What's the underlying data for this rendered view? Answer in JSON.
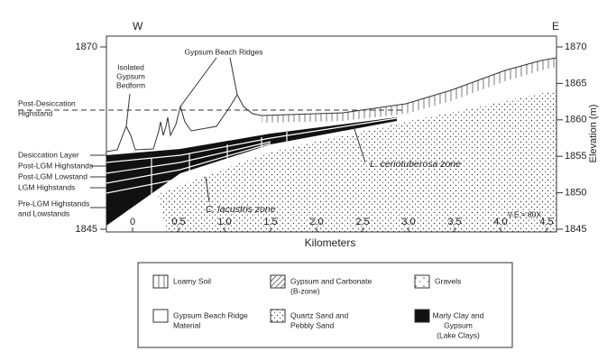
{
  "header": {
    "west": "W",
    "east": "E"
  },
  "axes": {
    "x_label": "Kilometers",
    "y_label": "Elevation (m)",
    "x_ticks": [
      0,
      0.5,
      {
        "value": 1,
        "label": "1.0"
      },
      1.5,
      {
        "value": 2,
        "label": "2.0"
      },
      2.5,
      {
        "value": 3,
        "label": "3.0"
      },
      3.5,
      {
        "value": 4,
        "label": "4.0"
      },
      4.5
    ],
    "left_y_ticks": [
      1870,
      1845
    ],
    "right_y_ticks": [
      1870,
      1865,
      1860,
      1855,
      1850,
      1845
    ]
  },
  "left_labels": [
    [
      "Post-Desiccation",
      "Highstand"
    ],
    [
      "Desiccation Layer"
    ],
    [
      "Post-LGM Highstands"
    ],
    [
      "Post-LGM Lowstand"
    ],
    [
      "LGM Highstands"
    ],
    [
      "Pre-LGM Highstands",
      "and Lowstands"
    ]
  ],
  "annotations": {
    "bedform": [
      "Isolated",
      "Gypsum",
      "Bedform"
    ],
    "ridges": "Gypsum Beach Ridges",
    "ceriotuberosa": "L. ceriotuberosa zone",
    "lacustris": "C. lacustris zone",
    "ve": "V.E.≈ 80X"
  },
  "legend": [
    [
      "Loamy Soil"
    ],
    [
      "Gypsum and Carbonate",
      "(B-zone)"
    ],
    [
      "Gravels"
    ],
    [
      "Gypsum Beach Ridge",
      "Material"
    ],
    [
      "Quartz Sand and",
      "Pebbly Sand"
    ],
    [
      "Marly Clay and",
      "Gypsum",
      "(Lake Clays)"
    ]
  ]
}
